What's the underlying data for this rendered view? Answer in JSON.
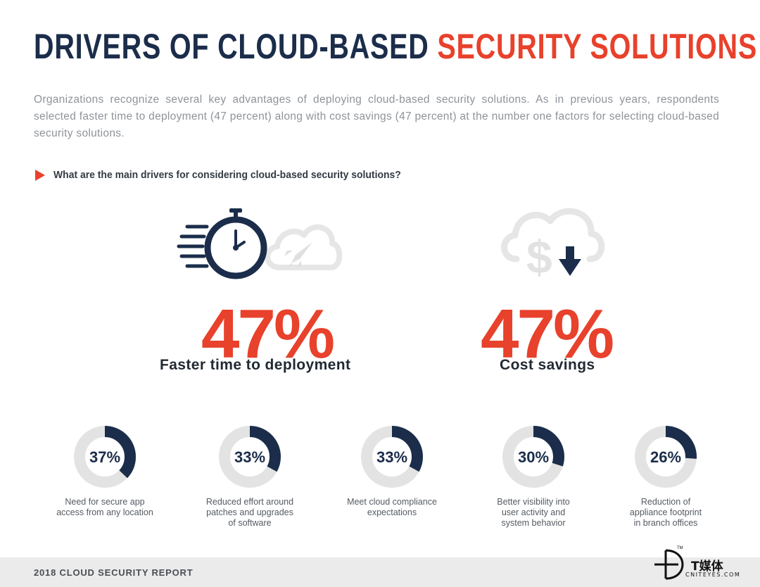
{
  "header": {
    "title_part1": "DRIVERS OF CLOUD-BASED ",
    "title_part2": "SECURITY SOLUTIONS",
    "intro": "Organizations recognize several key advantages of deploying cloud-based security solutions. As in previous years, respondents selected faster time to deployment (47 percent) along with cost savings (47 percent) at the number one factors for selecting cloud-based security solutions."
  },
  "question": "What are the main drivers for considering cloud-based security solutions?",
  "highlights": [
    {
      "value": "47%",
      "label": "Faster time to deployment",
      "icon": "stopwatch-rocket-cloud-icon"
    },
    {
      "value": "47%",
      "label": "Cost savings",
      "icon": "dollar-cloud-down-arrow-icon"
    }
  ],
  "chart_data": {
    "type": "pie",
    "categories": [
      "Faster time to deployment",
      "Cost savings",
      "Need for secure app access from any location",
      "Reduced effort around patches and upgrades of software",
      "Meet cloud compliance expectations",
      "Better visibility into user activity and system behavior",
      "Reduction of appliance footprint in branch offices"
    ],
    "values": [
      47,
      47,
      37,
      33,
      33,
      30,
      26
    ],
    "unit": "%",
    "colors": {
      "accent": "#e8412c",
      "navy": "#1b2d4a",
      "track": "#e3e3e3"
    }
  },
  "donuts": [
    {
      "pct": "37%",
      "label": "Need for secure app\naccess from any location"
    },
    {
      "pct": "33%",
      "label": "Reduced effort around\npatches and upgrades\nof software"
    },
    {
      "pct": "33%",
      "label": "Meet cloud compliance\nexpectations"
    },
    {
      "pct": "30%",
      "label": "Better visibility into\nuser activity and\nsystem behavior"
    },
    {
      "pct": "26%",
      "label": "Reduction of\nappliance footprint\nin branch offices"
    }
  ],
  "footer": {
    "text": "2018 CLOUD SECURITY REPORT"
  },
  "watermark": {
    "cn": "T媒体",
    "en": "CNITEYES.COM",
    "tm": "TM"
  }
}
